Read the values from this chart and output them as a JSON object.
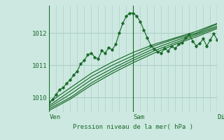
{
  "xlabel": "Pression niveau de la mer( hPa )",
  "bg_color": "#cce8e0",
  "grid_color": "#aaccC4",
  "line_color": "#1a6b2a",
  "text_color": "#1a6b2a",
  "yticks": [
    1010,
    1011,
    1012
  ],
  "ylim": [
    1009.55,
    1012.85
  ],
  "xlim": [
    0,
    48
  ],
  "xtick_positions": [
    0,
    24,
    48
  ],
  "xtick_labels": [
    "Ven",
    "Sam",
    "Dim"
  ],
  "smooth_series": [
    {
      "x": [
        0,
        6,
        12,
        18,
        24,
        30,
        36,
        42,
        48
      ],
      "y": [
        1009.85,
        1010.3,
        1010.75,
        1011.1,
        1011.4,
        1011.65,
        1011.85,
        1012.05,
        1012.3
      ]
    },
    {
      "x": [
        0,
        6,
        12,
        18,
        24,
        30,
        36,
        42,
        48
      ],
      "y": [
        1009.75,
        1010.2,
        1010.65,
        1011.0,
        1011.3,
        1011.6,
        1011.82,
        1012.0,
        1012.28
      ]
    },
    {
      "x": [
        0,
        6,
        12,
        18,
        24,
        30,
        36,
        42,
        48
      ],
      "y": [
        1009.7,
        1010.1,
        1010.55,
        1010.9,
        1011.22,
        1011.52,
        1011.76,
        1011.97,
        1012.22
      ]
    },
    {
      "x": [
        0,
        6,
        12,
        18,
        24,
        30,
        36,
        42,
        48
      ],
      "y": [
        1009.65,
        1010.0,
        1010.45,
        1010.82,
        1011.15,
        1011.45,
        1011.7,
        1011.93,
        1012.18
      ]
    },
    {
      "x": [
        0,
        6,
        12,
        18,
        24,
        30,
        36,
        42,
        48
      ],
      "y": [
        1009.6,
        1009.95,
        1010.38,
        1010.75,
        1011.08,
        1011.38,
        1011.65,
        1011.88,
        1012.14
      ]
    }
  ],
  "noisy_series_x": [
    0,
    1,
    2,
    3,
    4,
    5,
    6,
    7,
    8,
    9,
    10,
    11,
    12,
    13,
    14,
    15,
    16,
    17,
    18,
    19,
    20,
    21,
    22,
    23,
    24,
    25,
    26,
    27,
    28,
    29,
    30,
    31,
    32,
    33,
    34,
    35,
    36,
    37,
    38,
    39,
    40,
    41,
    42,
    43,
    44,
    45,
    46,
    47,
    48
  ],
  "noisy_series_y": [
    1009.85,
    1009.95,
    1010.1,
    1010.25,
    1010.3,
    1010.45,
    1010.55,
    1010.7,
    1010.82,
    1011.05,
    1011.15,
    1011.32,
    1011.38,
    1011.25,
    1011.2,
    1011.45,
    1011.38,
    1011.55,
    1011.48,
    1011.65,
    1012.0,
    1012.3,
    1012.52,
    1012.62,
    1012.62,
    1012.52,
    1012.35,
    1012.1,
    1011.85,
    1011.62,
    1011.5,
    1011.42,
    1011.38,
    1011.52,
    1011.44,
    1011.6,
    1011.52,
    1011.65,
    1011.7,
    1011.85,
    1011.95,
    1011.75,
    1011.6,
    1011.68,
    1011.82,
    1011.6,
    1011.78,
    1011.98,
    1011.78
  ]
}
